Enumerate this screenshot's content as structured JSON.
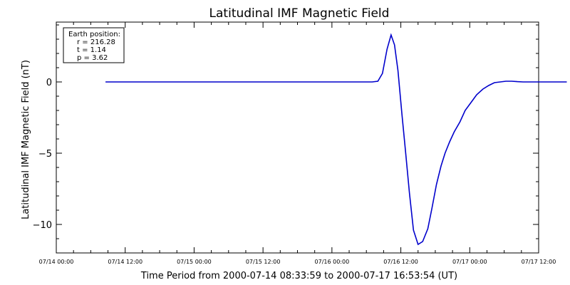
{
  "chart_data": {
    "type": "line",
    "title": "Latitudinal IMF Magnetic Field",
    "xlabel": "Time Period from 2000-07-14 08:33:59 to 2000-07-17 16:53:54 (UT)",
    "ylabel": "Latitudinal IMF Magnetic Field (nT)",
    "x_unit": "hours since 07/14 00:00",
    "xlim": [
      0,
      84
    ],
    "ylim": [
      -12,
      4.2
    ],
    "yticks": [
      0,
      -5,
      -10
    ],
    "ytick_labels": [
      "0",
      "−5",
      "−10"
    ],
    "xticks": [
      0,
      12,
      24,
      36,
      48,
      60,
      72,
      84
    ],
    "xtick_labels": [
      "07/14 00:00",
      "07/14 12:00",
      "07/15 00:00",
      "07/15 12:00",
      "07/16 00:00",
      "07/16 12:00",
      "07/17 00:00",
      "07/17 12:00"
    ],
    "grid": false,
    "line_color": "#0000cc",
    "series": [
      {
        "x": [
          8.57,
          20,
          30,
          40,
          50,
          55.0,
          56.0,
          56.8,
          57.6,
          58.3,
          58.9,
          59.5,
          60.2,
          60.8,
          61.5,
          62.2,
          63.0,
          63.8,
          64.7,
          65.4,
          66.2,
          67.0,
          67.7,
          68.5,
          69.3,
          70.3,
          71.2,
          72.3,
          73.2,
          74.3,
          75.3,
          76.3,
          77.3,
          78.3,
          79.3,
          80.3,
          81.3,
          82.3,
          83.3,
          84.5,
          85.5,
          86.5,
          87.5,
          88.5,
          88.9
        ],
        "y": [
          0,
          0,
          0,
          0,
          0,
          0,
          0.05,
          0.6,
          2.3,
          3.3,
          2.6,
          0.8,
          -2.3,
          -4.8,
          -7.8,
          -10.4,
          -11.4,
          -11.2,
          -10.3,
          -8.9,
          -7.2,
          -5.9,
          -5.0,
          -4.2,
          -3.5,
          -2.8,
          -2.0,
          -1.4,
          -0.9,
          -0.5,
          -0.25,
          -0.05,
          0.0,
          0.05,
          0.05,
          0.02,
          0.0,
          0.0,
          0.0,
          0.0,
          0.0,
          0.0,
          0.0,
          0.0,
          0.0
        ]
      }
    ],
    "annotation": {
      "title": "Earth position:",
      "lines": [
        "r = 216.28",
        "t = 1.14",
        "p = 3.62"
      ]
    }
  }
}
